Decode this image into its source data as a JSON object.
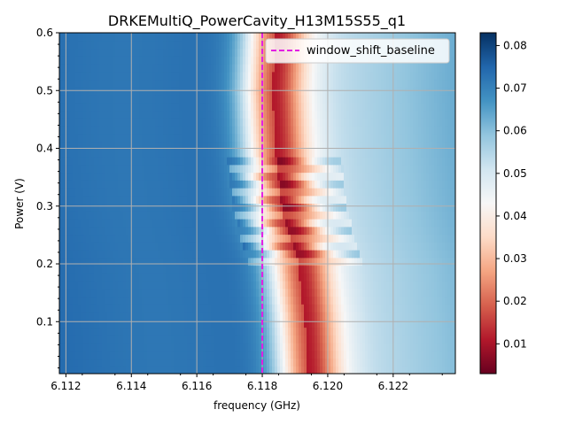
{
  "chart_data": {
    "type": "heatmap",
    "title": "DRKEMultiQ_PowerCavity_H13M15S55_q1",
    "xlabel": "frequency (GHz)",
    "ylabel": "Power (V)",
    "xlim": [
      6.1118,
      6.1239
    ],
    "ylim": [
      0.01,
      0.6
    ],
    "x_ticks": [
      6.112,
      6.114,
      6.116,
      6.118,
      6.12,
      6.122
    ],
    "x_tick_labels": [
      "6.112",
      "6.114",
      "6.116",
      "6.118",
      "6.120",
      "6.122"
    ],
    "y_ticks": [
      0.1,
      0.2,
      0.3,
      0.4,
      0.5,
      0.6
    ],
    "y_tick_labels": [
      "0.1",
      "0.2",
      "0.3",
      "0.4",
      "0.5",
      "0.6"
    ],
    "grid": true,
    "colormap": "RdBu",
    "colorbar": {
      "range": [
        0.003,
        0.083
      ],
      "ticks": [
        0.01,
        0.02,
        0.03,
        0.04,
        0.05,
        0.06,
        0.07,
        0.08
      ],
      "tick_labels": [
        "0.01",
        "0.02",
        "0.03",
        "0.04",
        "0.05",
        "0.06",
        "0.07",
        "0.08"
      ]
    },
    "resonance_trace": {
      "description": "frequency of minimum signal vs power",
      "power": [
        0.01,
        0.1,
        0.2,
        0.25,
        0.3,
        0.35,
        0.4,
        0.5,
        0.6
      ],
      "frequency": [
        6.1194,
        6.1193,
        6.1191,
        6.1188,
        6.1186,
        6.1185,
        6.1184,
        6.1183,
        6.1184
      ]
    },
    "series": [
      {
        "name": "window_shift_baseline",
        "type": "vline",
        "x": 6.118,
        "style": "dashed",
        "color": "#e31ee3"
      }
    ],
    "legend": {
      "placement": "top-right",
      "entries": [
        "window_shift_baseline"
      ]
    }
  }
}
